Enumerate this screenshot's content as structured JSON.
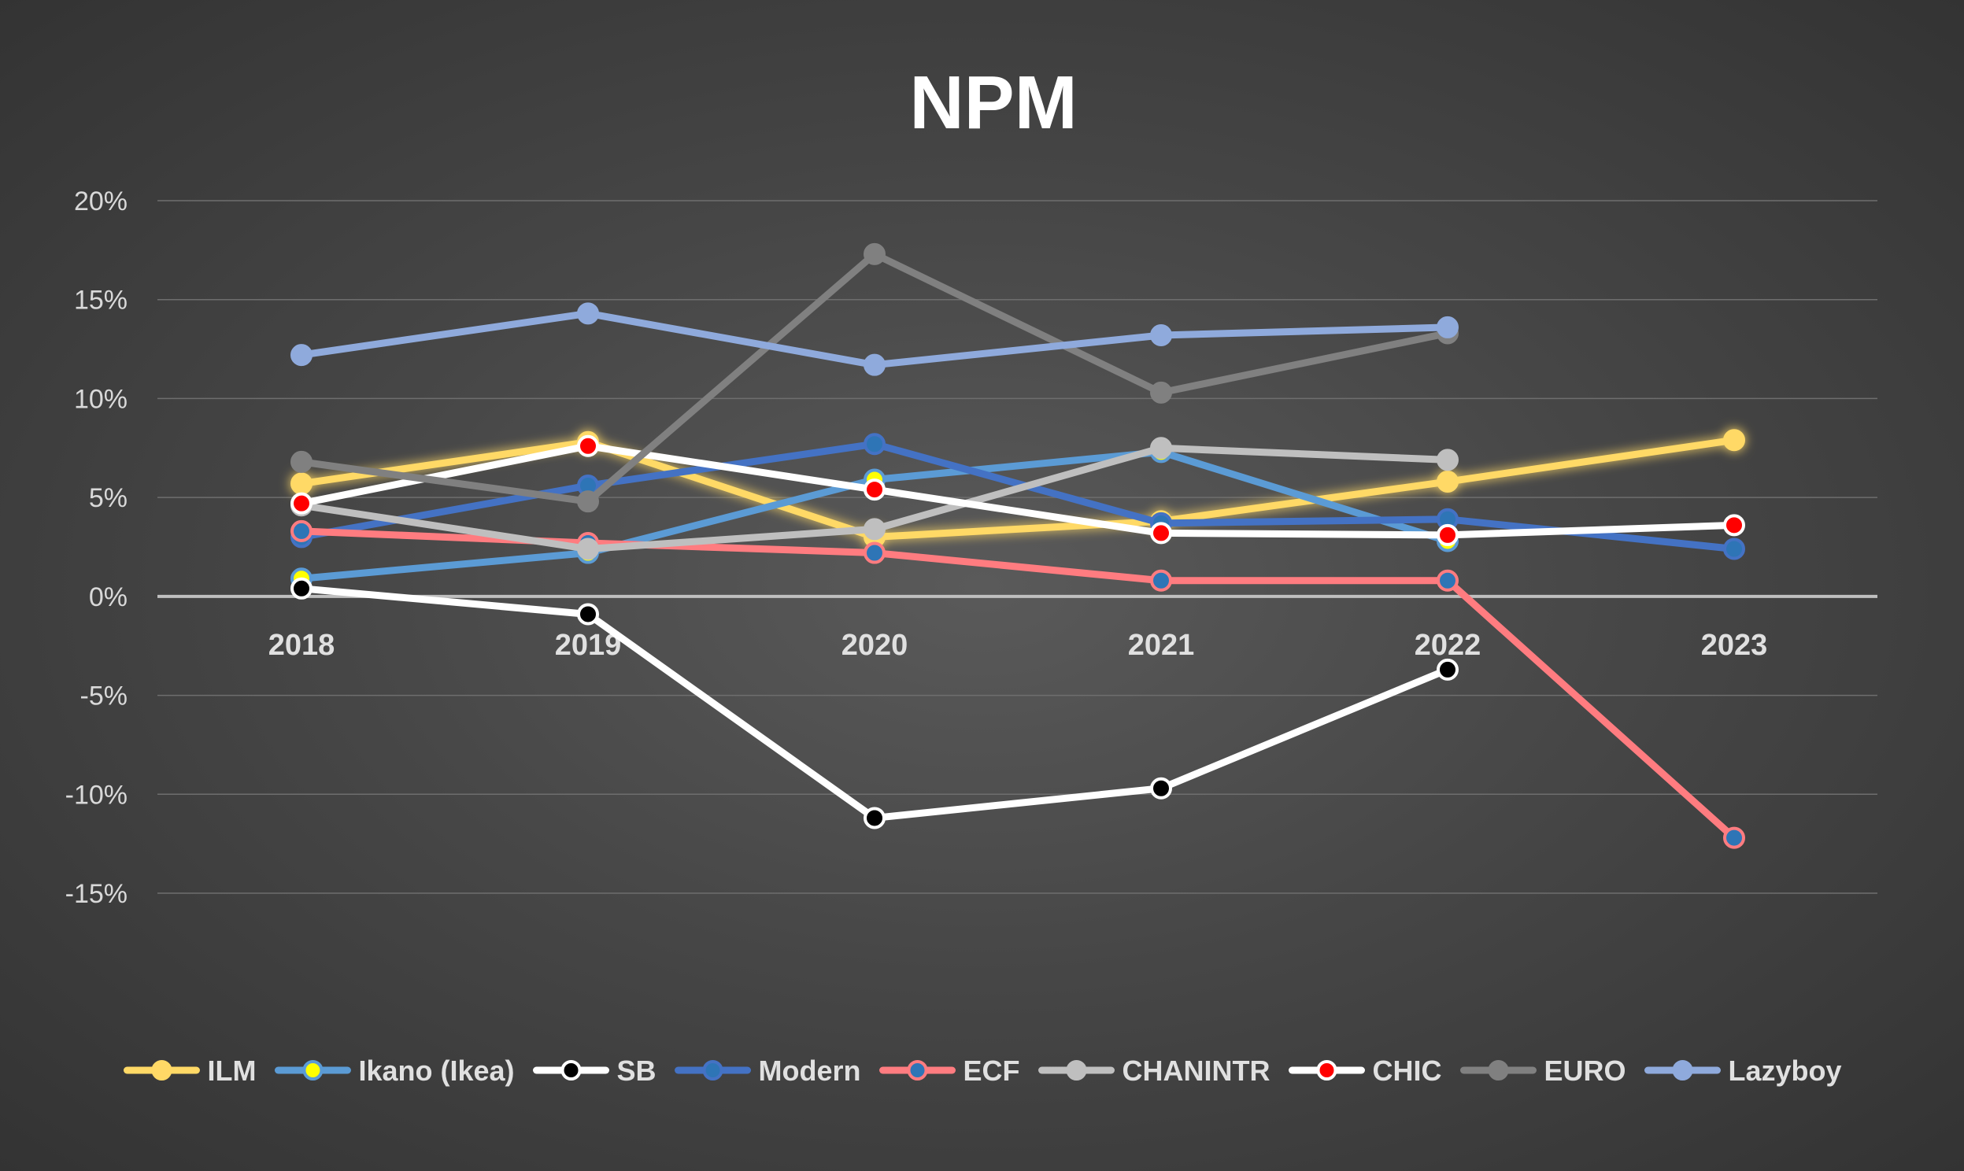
{
  "chart_data": {
    "type": "line",
    "title": "NPM",
    "x": [
      "2018",
      "2019",
      "2020",
      "2021",
      "2022",
      "2023"
    ],
    "ylim": [
      -0.15,
      0.2
    ],
    "yticks": [
      0.2,
      0.15,
      0.1,
      0.05,
      0.0,
      -0.05,
      -0.1,
      -0.15
    ],
    "ytick_labels": [
      "20%",
      "15%",
      "10%",
      "5%",
      "0%",
      "-5%",
      "-10%",
      "-15%"
    ],
    "grid": true,
    "legend_position": "bottom",
    "series": [
      {
        "name": "ILM",
        "color": "#ffd966",
        "marker": "#ffd966",
        "glow": true,
        "values": [
          0.057,
          0.078,
          0.03,
          0.038,
          0.058,
          0.079
        ]
      },
      {
        "name": "Ikano (Ikea)",
        "color": "#5b9bd5",
        "marker": "#ffff00",
        "values": [
          0.009,
          0.022,
          0.059,
          0.073,
          0.028,
          null
        ]
      },
      {
        "name": "SB",
        "color": "#ffffff",
        "marker": "#000000",
        "values": [
          0.004,
          -0.009,
          -0.112,
          -0.097,
          -0.037,
          null
        ]
      },
      {
        "name": "Modern",
        "color": "#4472c4",
        "marker": "#2e75b6",
        "values": [
          0.03,
          0.056,
          0.077,
          0.037,
          0.039,
          0.024
        ]
      },
      {
        "name": "ECF",
        "color": "#ff7c80",
        "marker": "#2e75b6",
        "values": [
          0.033,
          0.027,
          0.022,
          0.008,
          0.008,
          -0.122
        ]
      },
      {
        "name": "CHANINTR",
        "color": "#bfbfbf",
        "marker": "#bfbfbf",
        "values": [
          0.046,
          0.024,
          0.034,
          0.075,
          0.069,
          null
        ]
      },
      {
        "name": "CHIC",
        "color": "#ffffff",
        "marker": "#ff0000",
        "values": [
          0.047,
          0.076,
          0.054,
          0.032,
          0.031,
          0.036
        ]
      },
      {
        "name": "EURO",
        "color": "#808080",
        "marker": "#808080",
        "values": [
          0.068,
          0.048,
          0.173,
          0.103,
          0.133,
          null
        ]
      },
      {
        "name": "Lazyboy",
        "color": "#8faadc",
        "marker": "#8faadc",
        "values": [
          0.122,
          0.143,
          0.117,
          0.132,
          0.136,
          null
        ]
      }
    ]
  }
}
